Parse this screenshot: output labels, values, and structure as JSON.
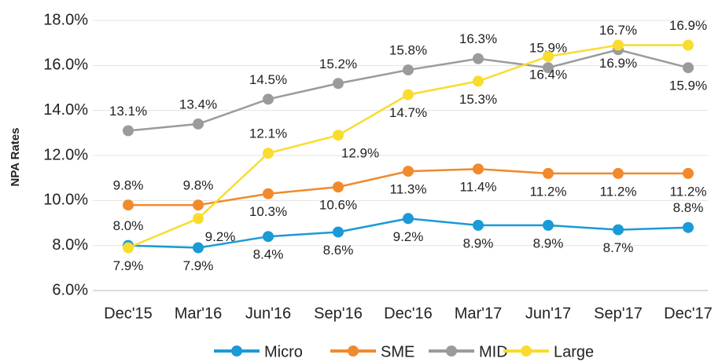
{
  "chart_data": {
    "type": "line",
    "y_axis_label": "NPA Rates",
    "categories": [
      "Dec'15",
      "Mar'16",
      "Jun'16",
      "Sep'16",
      "Dec'16",
      "Mar'17",
      "Jun'17",
      "Sep'17",
      "Dec'17"
    ],
    "series": [
      {
        "name": "Micro",
        "color": "#1a9ad6",
        "values": [
          8.0,
          7.9,
          8.4,
          8.6,
          9.2,
          8.9,
          8.9,
          8.7,
          8.8
        ],
        "value_labels": [
          "8.0%",
          "7.9%",
          "8.4%",
          "8.6%",
          "9.2%",
          "8.9%",
          "8.9%",
          "8.7%",
          "8.8%"
        ]
      },
      {
        "name": "SME",
        "color": "#f08a2c",
        "values": [
          9.8,
          9.8,
          10.3,
          10.6,
          11.3,
          11.4,
          11.2,
          11.2,
          11.2
        ],
        "value_labels": [
          "9.8%",
          "9.8%",
          "10.3%",
          "10.6%",
          "11.3%",
          "11.4%",
          "11.2%",
          "11.2%",
          "11.2%"
        ]
      },
      {
        "name": "MID",
        "color": "#9b9b9b",
        "values": [
          13.1,
          13.4,
          14.5,
          15.2,
          15.8,
          16.3,
          15.9,
          16.7,
          15.9
        ],
        "value_labels": [
          "13.1%",
          "13.4%",
          "14.5%",
          "15.2%",
          "15.8%",
          "16.3%",
          "15.9%",
          "16.7%",
          "15.9%"
        ]
      },
      {
        "name": "Large",
        "color": "#f9dc2e",
        "values": [
          7.9,
          9.2,
          12.1,
          12.9,
          14.7,
          15.3,
          16.4,
          16.9,
          16.9
        ],
        "value_labels": [
          "7.9%",
          "9.2%",
          "12.1%",
          "12.9%",
          "14.7%",
          "15.3%",
          "16.4%",
          "16.9%",
          "16.9%"
        ]
      }
    ],
    "ylim": [
      6.0,
      18.0
    ],
    "yticks": [
      {
        "value": 6.0,
        "label": "6.0%"
      },
      {
        "value": 8.0,
        "label": "8.0%"
      },
      {
        "value": 10.0,
        "label": "10.0%"
      },
      {
        "value": 12.0,
        "label": "12.0%"
      },
      {
        "value": 14.0,
        "label": "14.0%"
      },
      {
        "value": 16.0,
        "label": "16.0%"
      },
      {
        "value": 18.0,
        "label": "18.0%"
      }
    ],
    "grid": true,
    "legend": "bottom"
  }
}
